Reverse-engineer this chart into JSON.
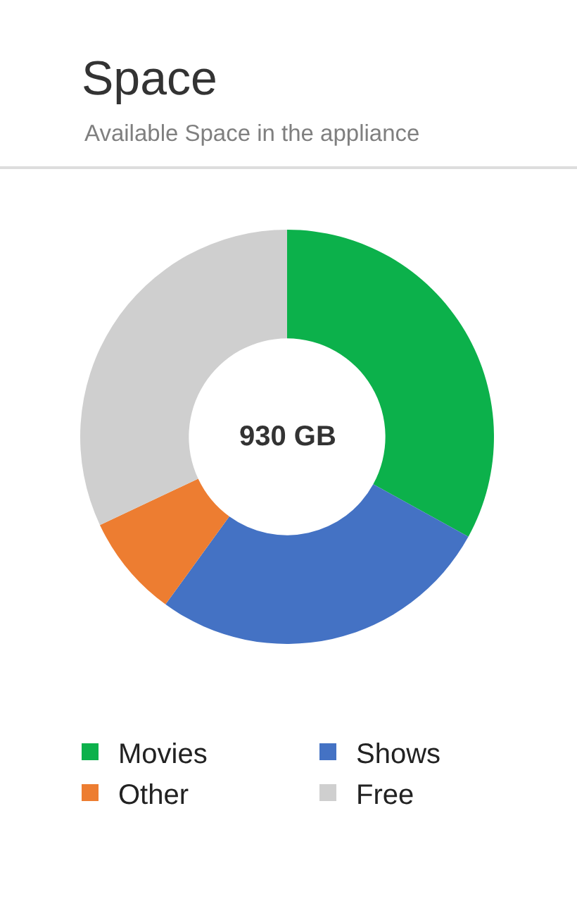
{
  "chart_data": {
    "type": "donut",
    "title": "Space",
    "subtitle": "Available Space in the appliance",
    "categories": [
      "Movies",
      "Shows",
      "Other",
      "Free"
    ],
    "values": [
      33,
      27,
      8,
      32
    ],
    "colors": [
      "#0cb14b",
      "#4472c4",
      "#ed7d31",
      "#cfcfcf"
    ],
    "annotations": [
      "930 GB"
    ],
    "legend": "bottom"
  }
}
